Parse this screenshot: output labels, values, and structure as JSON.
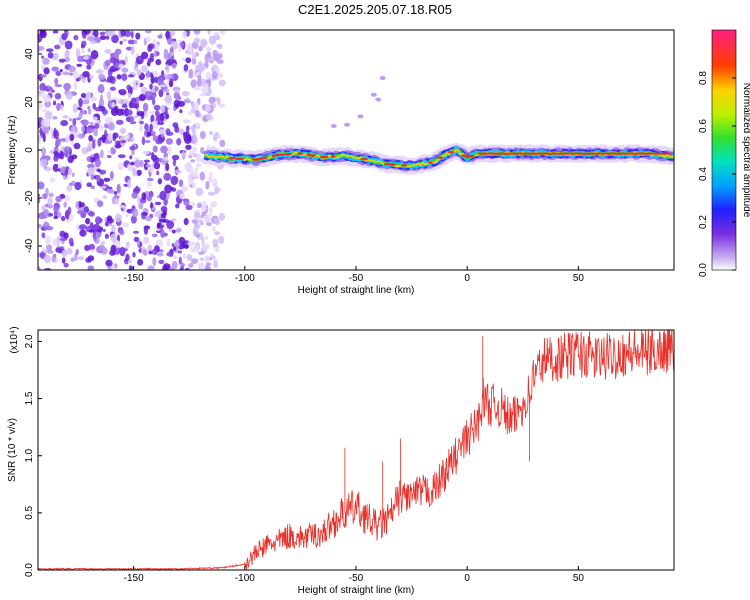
{
  "title": "C2E1.2025.205.07.18.R05",
  "chart_data": [
    {
      "type": "heatmap",
      "xlabel": "Height of straight line (km)",
      "ylabel": "Frequency (Hz)",
      "xlim": [
        -193,
        93
      ],
      "ylim": [
        -50,
        50
      ],
      "xticks": [
        -150,
        -100,
        -50,
        0,
        50
      ],
      "yticks": [
        -40,
        -20,
        0,
        20,
        40
      ],
      "ridge_frequency": [
        [
          -115,
          -2.5
        ],
        [
          -105,
          -3.5
        ],
        [
          -95,
          -4
        ],
        [
          -85,
          -2
        ],
        [
          -75,
          -1.5
        ],
        [
          -65,
          -3
        ],
        [
          -55,
          -2.5
        ],
        [
          -45,
          -4
        ],
        [
          -35,
          -6
        ],
        [
          -25,
          -6.5
        ],
        [
          -15,
          -5
        ],
        [
          -10,
          -2
        ],
        [
          -5,
          0
        ],
        [
          0,
          -3
        ],
        [
          5,
          -1.5
        ],
        [
          20,
          -1.5
        ],
        [
          40,
          -1.5
        ],
        [
          60,
          -1.5
        ],
        [
          80,
          -1.5
        ],
        [
          92,
          -2.5
        ]
      ],
      "colorbar": {
        "label": "Normalized spectral amplitude",
        "range": [
          0,
          1
        ],
        "ticks": [
          "0.0",
          "0.2",
          "0.4",
          "0.6",
          "0.8"
        ]
      }
    },
    {
      "type": "line",
      "xlabel": "Height of straight line (km)",
      "ylabel": "SNR (10 * v/v)",
      "multiplier": "(x10⁴)",
      "xlim": [
        -193,
        93
      ],
      "ylim": [
        0,
        2.1
      ],
      "xticks": [
        -150,
        -100,
        -50,
        0,
        50
      ],
      "yticks": [
        "0.0",
        "0.5",
        "1.0",
        "1.5",
        "2.0"
      ],
      "color": "#e8302a",
      "series": [
        {
          "x": [
            -193,
            -160,
            -130,
            -110,
            -100,
            -95,
            -90,
            -85,
            -80,
            -75,
            -70,
            -65,
            -60,
            -55,
            -50,
            -45,
            -40,
            -35,
            -30,
            -25,
            -20,
            -15,
            -10,
            -5,
            0,
            5,
            7,
            10,
            15,
            20,
            25,
            28,
            30,
            35,
            40,
            50,
            60,
            70,
            80,
            92
          ],
          "y": [
            0.01,
            0.01,
            0.01,
            0.02,
            0.05,
            0.15,
            0.22,
            0.25,
            0.3,
            0.28,
            0.3,
            0.32,
            0.42,
            0.5,
            0.55,
            0.45,
            0.38,
            0.45,
            0.65,
            0.65,
            0.68,
            0.7,
            0.85,
            1.0,
            1.15,
            1.3,
            1.5,
            1.45,
            1.42,
            1.3,
            1.45,
            1.55,
            1.7,
            1.85,
            1.85,
            1.9,
            1.85,
            1.9,
            1.9,
            1.95
          ]
        }
      ],
      "spikes": [
        [
          -55,
          1.07
        ],
        [
          -38,
          0.95
        ],
        [
          -30,
          1.15
        ],
        [
          7,
          2.05
        ],
        [
          28,
          0.95
        ]
      ]
    }
  ]
}
